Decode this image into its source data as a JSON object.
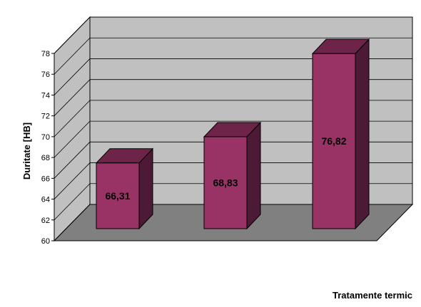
{
  "chart_data": {
    "type": "bar",
    "style": "3d-column",
    "categories": [
      "",
      "",
      ""
    ],
    "values": [
      66.31,
      68.83,
      76.82
    ],
    "data_labels": [
      "66,31",
      "68,83",
      "76,82"
    ],
    "title": "",
    "xlabel": "Tratamente termic",
    "ylabel": "Duritate [HB]",
    "ylim": [
      60,
      78
    ],
    "yticks": [
      "60",
      "62",
      "64",
      "66",
      "68",
      "70",
      "72",
      "74",
      "76",
      "78"
    ],
    "grid": true,
    "legend": "none",
    "colors": {
      "bar_front": "#993366",
      "bar_top": "#6e2449",
      "bar_side": "#4d1a35",
      "back_wall": "#c0c0c0",
      "side_wall": "#c0c0c0",
      "floor": "#808080",
      "grid": "#000000"
    }
  }
}
